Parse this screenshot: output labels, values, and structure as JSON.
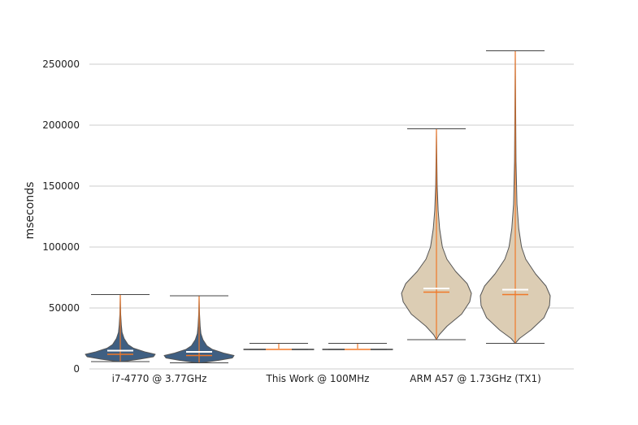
{
  "chart_data": {
    "type": "violin",
    "ylabel": "mseconds",
    "xlabel": "",
    "ylim": [
      0,
      265000
    ],
    "yticks": [
      0,
      50000,
      100000,
      150000,
      200000,
      250000
    ],
    "ytick_labels": [
      "0",
      "50000",
      "100000",
      "150000",
      "200000",
      "250000"
    ],
    "grid": true,
    "categories": [
      "i7-4770 @ 3.77GHz",
      "This Work @ 100MHz",
      "ARM A57 @ 1.73GHz (TX1)"
    ],
    "colors": {
      "i7": "#3f5f82",
      "this_work": "#3f5f82",
      "arm": "#dccdb4",
      "outline": "#555555",
      "range_line": "#f07828",
      "mean_line": "#ffffff",
      "grid": "#cccccc"
    },
    "violins": [
      {
        "group": 0,
        "min": 6000,
        "max": 61000,
        "median": 12000,
        "mean": 15000,
        "profile": [
          [
            6000,
            0.05
          ],
          [
            8000,
            0.55
          ],
          [
            10000,
            0.95
          ],
          [
            12000,
            1.0
          ],
          [
            14000,
            0.7
          ],
          [
            17000,
            0.38
          ],
          [
            20000,
            0.22
          ],
          [
            25000,
            0.11
          ],
          [
            30000,
            0.05
          ],
          [
            36000,
            0.03
          ],
          [
            45000,
            0.012
          ],
          [
            61000,
            0.0
          ]
        ]
      },
      {
        "group": 0,
        "min": 5000,
        "max": 60000,
        "median": 11000,
        "mean": 14000,
        "profile": [
          [
            5000,
            0.05
          ],
          [
            7000,
            0.55
          ],
          [
            9000,
            0.95
          ],
          [
            11000,
            1.0
          ],
          [
            13000,
            0.7
          ],
          [
            16000,
            0.38
          ],
          [
            19000,
            0.22
          ],
          [
            24000,
            0.11
          ],
          [
            29000,
            0.05
          ],
          [
            35000,
            0.03
          ],
          [
            45000,
            0.012
          ],
          [
            60000,
            0.0
          ]
        ]
      },
      {
        "group": 1,
        "min": 16000,
        "max": 21000,
        "median": 16000,
        "mean": 16000,
        "profile": [
          [
            15700,
            1.0
          ],
          [
            16300,
            1.0
          ]
        ]
      },
      {
        "group": 1,
        "min": 16000,
        "max": 21000,
        "median": 16000,
        "mean": 16000,
        "profile": [
          [
            15700,
            1.0
          ],
          [
            16300,
            1.0
          ]
        ]
      },
      {
        "group": 2,
        "min": 24000,
        "max": 197000,
        "median": 63000,
        "mean": 66000,
        "profile": [
          [
            24000,
            0.0
          ],
          [
            28000,
            0.08
          ],
          [
            35000,
            0.3
          ],
          [
            45000,
            0.72
          ],
          [
            55000,
            0.95
          ],
          [
            62000,
            1.0
          ],
          [
            70000,
            0.88
          ],
          [
            80000,
            0.55
          ],
          [
            90000,
            0.3
          ],
          [
            100000,
            0.17
          ],
          [
            115000,
            0.09
          ],
          [
            130000,
            0.05
          ],
          [
            150000,
            0.02
          ],
          [
            197000,
            0.0
          ]
        ]
      },
      {
        "group": 2,
        "min": 21000,
        "max": 261000,
        "median": 61000,
        "mean": 65000,
        "profile": [
          [
            21000,
            0.0
          ],
          [
            25000,
            0.12
          ],
          [
            32000,
            0.45
          ],
          [
            42000,
            0.82
          ],
          [
            52000,
            0.98
          ],
          [
            60000,
            1.0
          ],
          [
            68000,
            0.88
          ],
          [
            78000,
            0.58
          ],
          [
            90000,
            0.3
          ],
          [
            100000,
            0.18
          ],
          [
            115000,
            0.1
          ],
          [
            135000,
            0.05
          ],
          [
            170000,
            0.02
          ],
          [
            261000,
            0.0
          ]
        ]
      }
    ]
  }
}
